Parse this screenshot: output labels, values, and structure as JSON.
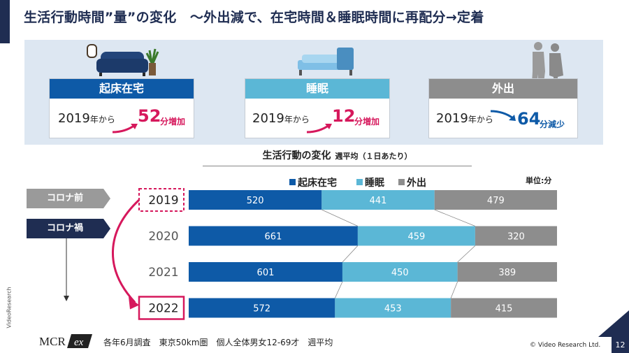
{
  "title": "生活行動時間”量”の変化　～外出減で、在宅時間＆睡眠時間に再配分→定着",
  "cards": [
    {
      "label": "起床在宅",
      "year_text": "2019",
      "from_text": "年から",
      "value": "52",
      "unit": "分増加",
      "head_color": "#0e5aa7",
      "value_color": "#d6185c"
    },
    {
      "label": "睡眠",
      "year_text": "2019",
      "from_text": "年から",
      "value": "12",
      "unit": "分増加",
      "head_color": "#5bb7d6",
      "value_color": "#d6185c"
    },
    {
      "label": "外出",
      "year_text": "2019",
      "from_text": "年から",
      "value": "64",
      "unit": "分減少",
      "head_color": "#8d8d8d",
      "value_color": "#0e5aa7"
    }
  ],
  "chart_data": {
    "type": "bar",
    "orientation": "horizontal",
    "stacked": true,
    "title": "生活行動の変化",
    "subtitle": "週平均（１日あたり）",
    "unit_label": "単位:分",
    "categories": [
      "2019",
      "2020",
      "2021",
      "2022"
    ],
    "series": [
      {
        "name": "起床在宅",
        "color": "#0e5aa7",
        "values": [
          520,
          661,
          601,
          572
        ]
      },
      {
        "name": "睡眠",
        "color": "#5bb7d6",
        "values": [
          441,
          459,
          450,
          453
        ]
      },
      {
        "name": "外出",
        "color": "#8d8d8d",
        "values": [
          479,
          320,
          389,
          415
        ]
      }
    ],
    "legend_position": "top",
    "highlighted_categories": [
      "2019",
      "2022"
    ]
  },
  "tags": {
    "before": "コロナ前",
    "during": "コロナ禍"
  },
  "footer": {
    "note": "各年6月調査　東京50km圏　個人全体男女12-69才　週平均",
    "copyright": "© Video Research Ltd.",
    "page_number": "12",
    "logo_text": "MCR",
    "logo_badge": "ex",
    "vertical_brand": "VideoResearch"
  },
  "colors": {
    "navy": "#1f2d52",
    "panel": "#dde7f2",
    "accent_red": "#d6185c"
  }
}
